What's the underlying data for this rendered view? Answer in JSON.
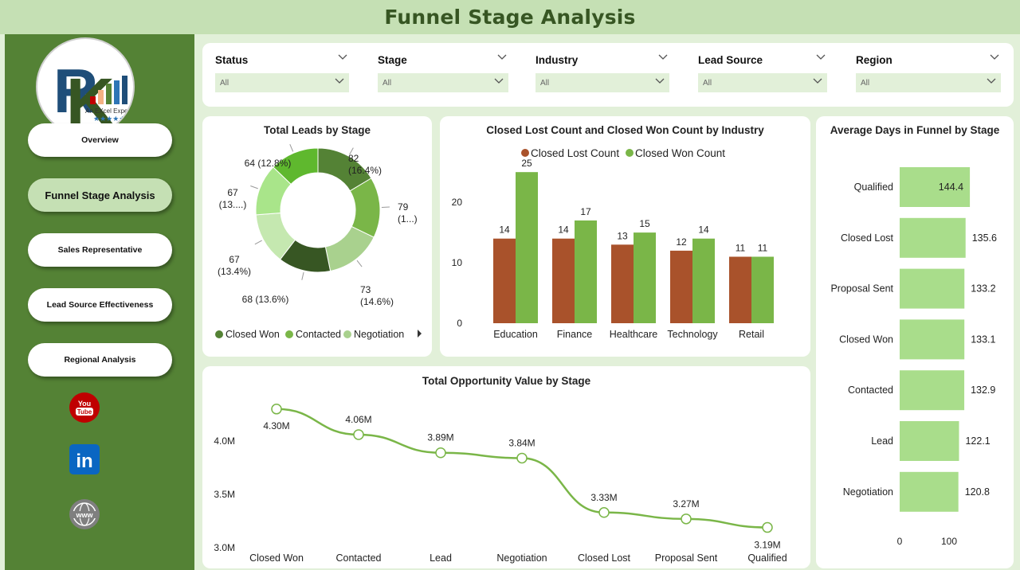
{
  "page": {
    "title": "Funnel Stage Analysis"
  },
  "logo": {
    "text": "An EXcel Expert",
    "icon": "rk-logo-icon"
  },
  "nav": [
    {
      "label": "Overview",
      "active": false
    },
    {
      "label": "Funnel Stage Analysis",
      "active": true
    },
    {
      "label": "Sales Representative",
      "active": false
    },
    {
      "label": "Lead Source Effectiveness",
      "active": false
    },
    {
      "label": "Regional Analysis",
      "active": false
    }
  ],
  "social": [
    {
      "icon": "youtube-icon",
      "label": "You Tube"
    },
    {
      "icon": "linkedin-icon",
      "label": "in"
    },
    {
      "icon": "website-icon",
      "label": "www"
    }
  ],
  "filters": [
    {
      "label": "Status",
      "value": "All"
    },
    {
      "label": "Stage",
      "value": "All"
    },
    {
      "label": "Industry",
      "value": "All"
    },
    {
      "label": "Lead Source",
      "value": "All"
    },
    {
      "label": "Region",
      "value": "All"
    }
  ],
  "colors": {
    "title_bar": "#c5e0b4",
    "title_text": "#375623",
    "sidebar": "#548235",
    "background": "#e2f0d9",
    "closed_lost": "#a9522b",
    "closed_won": "#7ab648",
    "bar_light": "#a9dd8b"
  },
  "chart_data": [
    {
      "id": "leads_by_stage",
      "type": "pie",
      "title": "Total Leads by Stage",
      "slices": [
        {
          "name": "Closed Won",
          "value": 82,
          "label": "82\n(16.4%)",
          "color": "#548235"
        },
        {
          "name": "Contacted",
          "value": 79,
          "label": "79\n(1...)",
          "color": "#7ab648"
        },
        {
          "name": "Negotiation",
          "value": 73,
          "label": "73\n(14.6%)",
          "color": "#a9d18e"
        },
        {
          "name": "",
          "value": 68,
          "label": "68 (13.6%)",
          "color": "#375623"
        },
        {
          "name": "",
          "value": 67,
          "label": "67\n(13.4%)",
          "color": "#c5e8b0"
        },
        {
          "name": "",
          "value": 67,
          "label": "67\n(13....)",
          "color": "#a9e58a"
        },
        {
          "name": "",
          "value": 64,
          "label": "64 (12.8%)",
          "color": "#5fb82e"
        }
      ],
      "legend": [
        "Closed Won",
        "Contacted",
        "Negotiation"
      ],
      "legend_placement": "bottom"
    },
    {
      "id": "closed_by_industry",
      "type": "bar",
      "title": "Closed Lost Count and Closed Won Count by Industry",
      "categories": [
        "Education",
        "Finance",
        "Healthcare",
        "Technology",
        "Retail"
      ],
      "series": [
        {
          "name": "Closed Lost Count",
          "values": [
            14,
            14,
            13,
            12,
            11
          ],
          "color": "#a9522b"
        },
        {
          "name": "Closed Won Count",
          "values": [
            25,
            17,
            15,
            14,
            11
          ],
          "color": "#7ab648"
        }
      ],
      "yticks": [
        "0",
        "10",
        "20"
      ],
      "ylim": [
        0,
        27
      ],
      "legend_placement": "top"
    },
    {
      "id": "avg_days_by_stage",
      "type": "bar",
      "orientation": "horizontal",
      "title": "Average Days in Funnel by Stage",
      "categories": [
        "Qualified",
        "Closed Lost",
        "Proposal Sent",
        "Closed Won",
        "Contacted",
        "Lead",
        "Negotiation"
      ],
      "values": [
        144.4,
        135.6,
        133.2,
        133.1,
        132.9,
        122.1,
        120.8
      ],
      "labels": [
        "144.4",
        "135.6",
        "133.2",
        "133.1",
        "132.9",
        "122.1",
        "120.8"
      ],
      "xticks": [
        "0",
        "100"
      ],
      "xlim": [
        0,
        220
      ],
      "color": "#a9dd8b"
    },
    {
      "id": "opportunity_by_stage",
      "type": "line",
      "title": "Total Opportunity Value by Stage",
      "categories": [
        "Closed Won",
        "Contacted",
        "Lead",
        "Negotiation",
        "Closed Lost",
        "Proposal Sent",
        "Qualified"
      ],
      "values": [
        4.3,
        4.06,
        3.89,
        3.84,
        3.33,
        3.27,
        3.19
      ],
      "labels": [
        "4.30M",
        "4.06M",
        "3.89M",
        "3.84M",
        "3.33M",
        "3.27M",
        "3.19M"
      ],
      "yticks": [
        "3.0M",
        "3.5M",
        "4.0M"
      ],
      "ylim": [
        3.0,
        4.4
      ],
      "color": "#7ab648"
    }
  ]
}
